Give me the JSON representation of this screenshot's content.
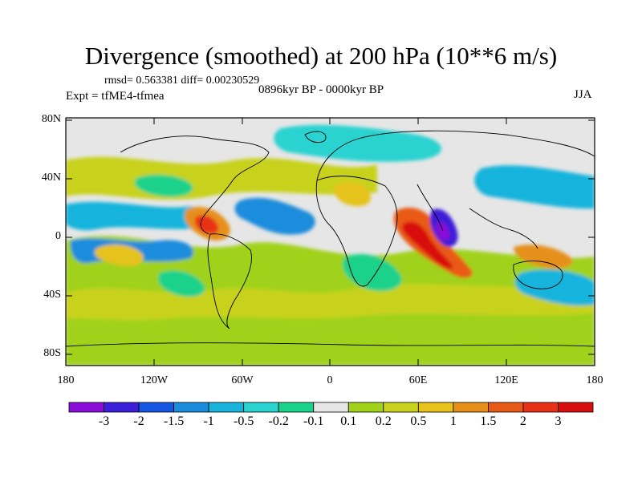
{
  "title": "Divergence (smoothed) at 200 hPa (10**6 m/s)",
  "stats_text": "rmsd= 0.563381 diff= 0.00230529",
  "expt_text": "Expt = tfME4-tfmea",
  "period_text": "0896kyr BP - 0000kyr BP",
  "season": "JJA",
  "lat_ticks": [
    "80N",
    "40N",
    "0",
    "40S",
    "80S"
  ],
  "lon_ticks": [
    "180",
    "120W",
    "60W",
    "0",
    "60E",
    "120E",
    "180"
  ],
  "colorbar": {
    "labels": [
      "-3",
      "-2",
      "-1.5",
      "-1",
      "-0.5",
      "-0.2",
      "-0.1",
      "0.1",
      "0.2",
      "0.5",
      "1",
      "1.5",
      "2",
      "3"
    ],
    "colors": [
      "#8a0fd8",
      "#3c1fd8",
      "#1656e0",
      "#1a8cdc",
      "#18b4dc",
      "#2ad2d0",
      "#1ad28a",
      "#e6e6e6",
      "#a0d21a",
      "#c8d21e",
      "#e6c21a",
      "#e6901a",
      "#e85a18",
      "#e83018",
      "#d80f0f"
    ]
  }
}
